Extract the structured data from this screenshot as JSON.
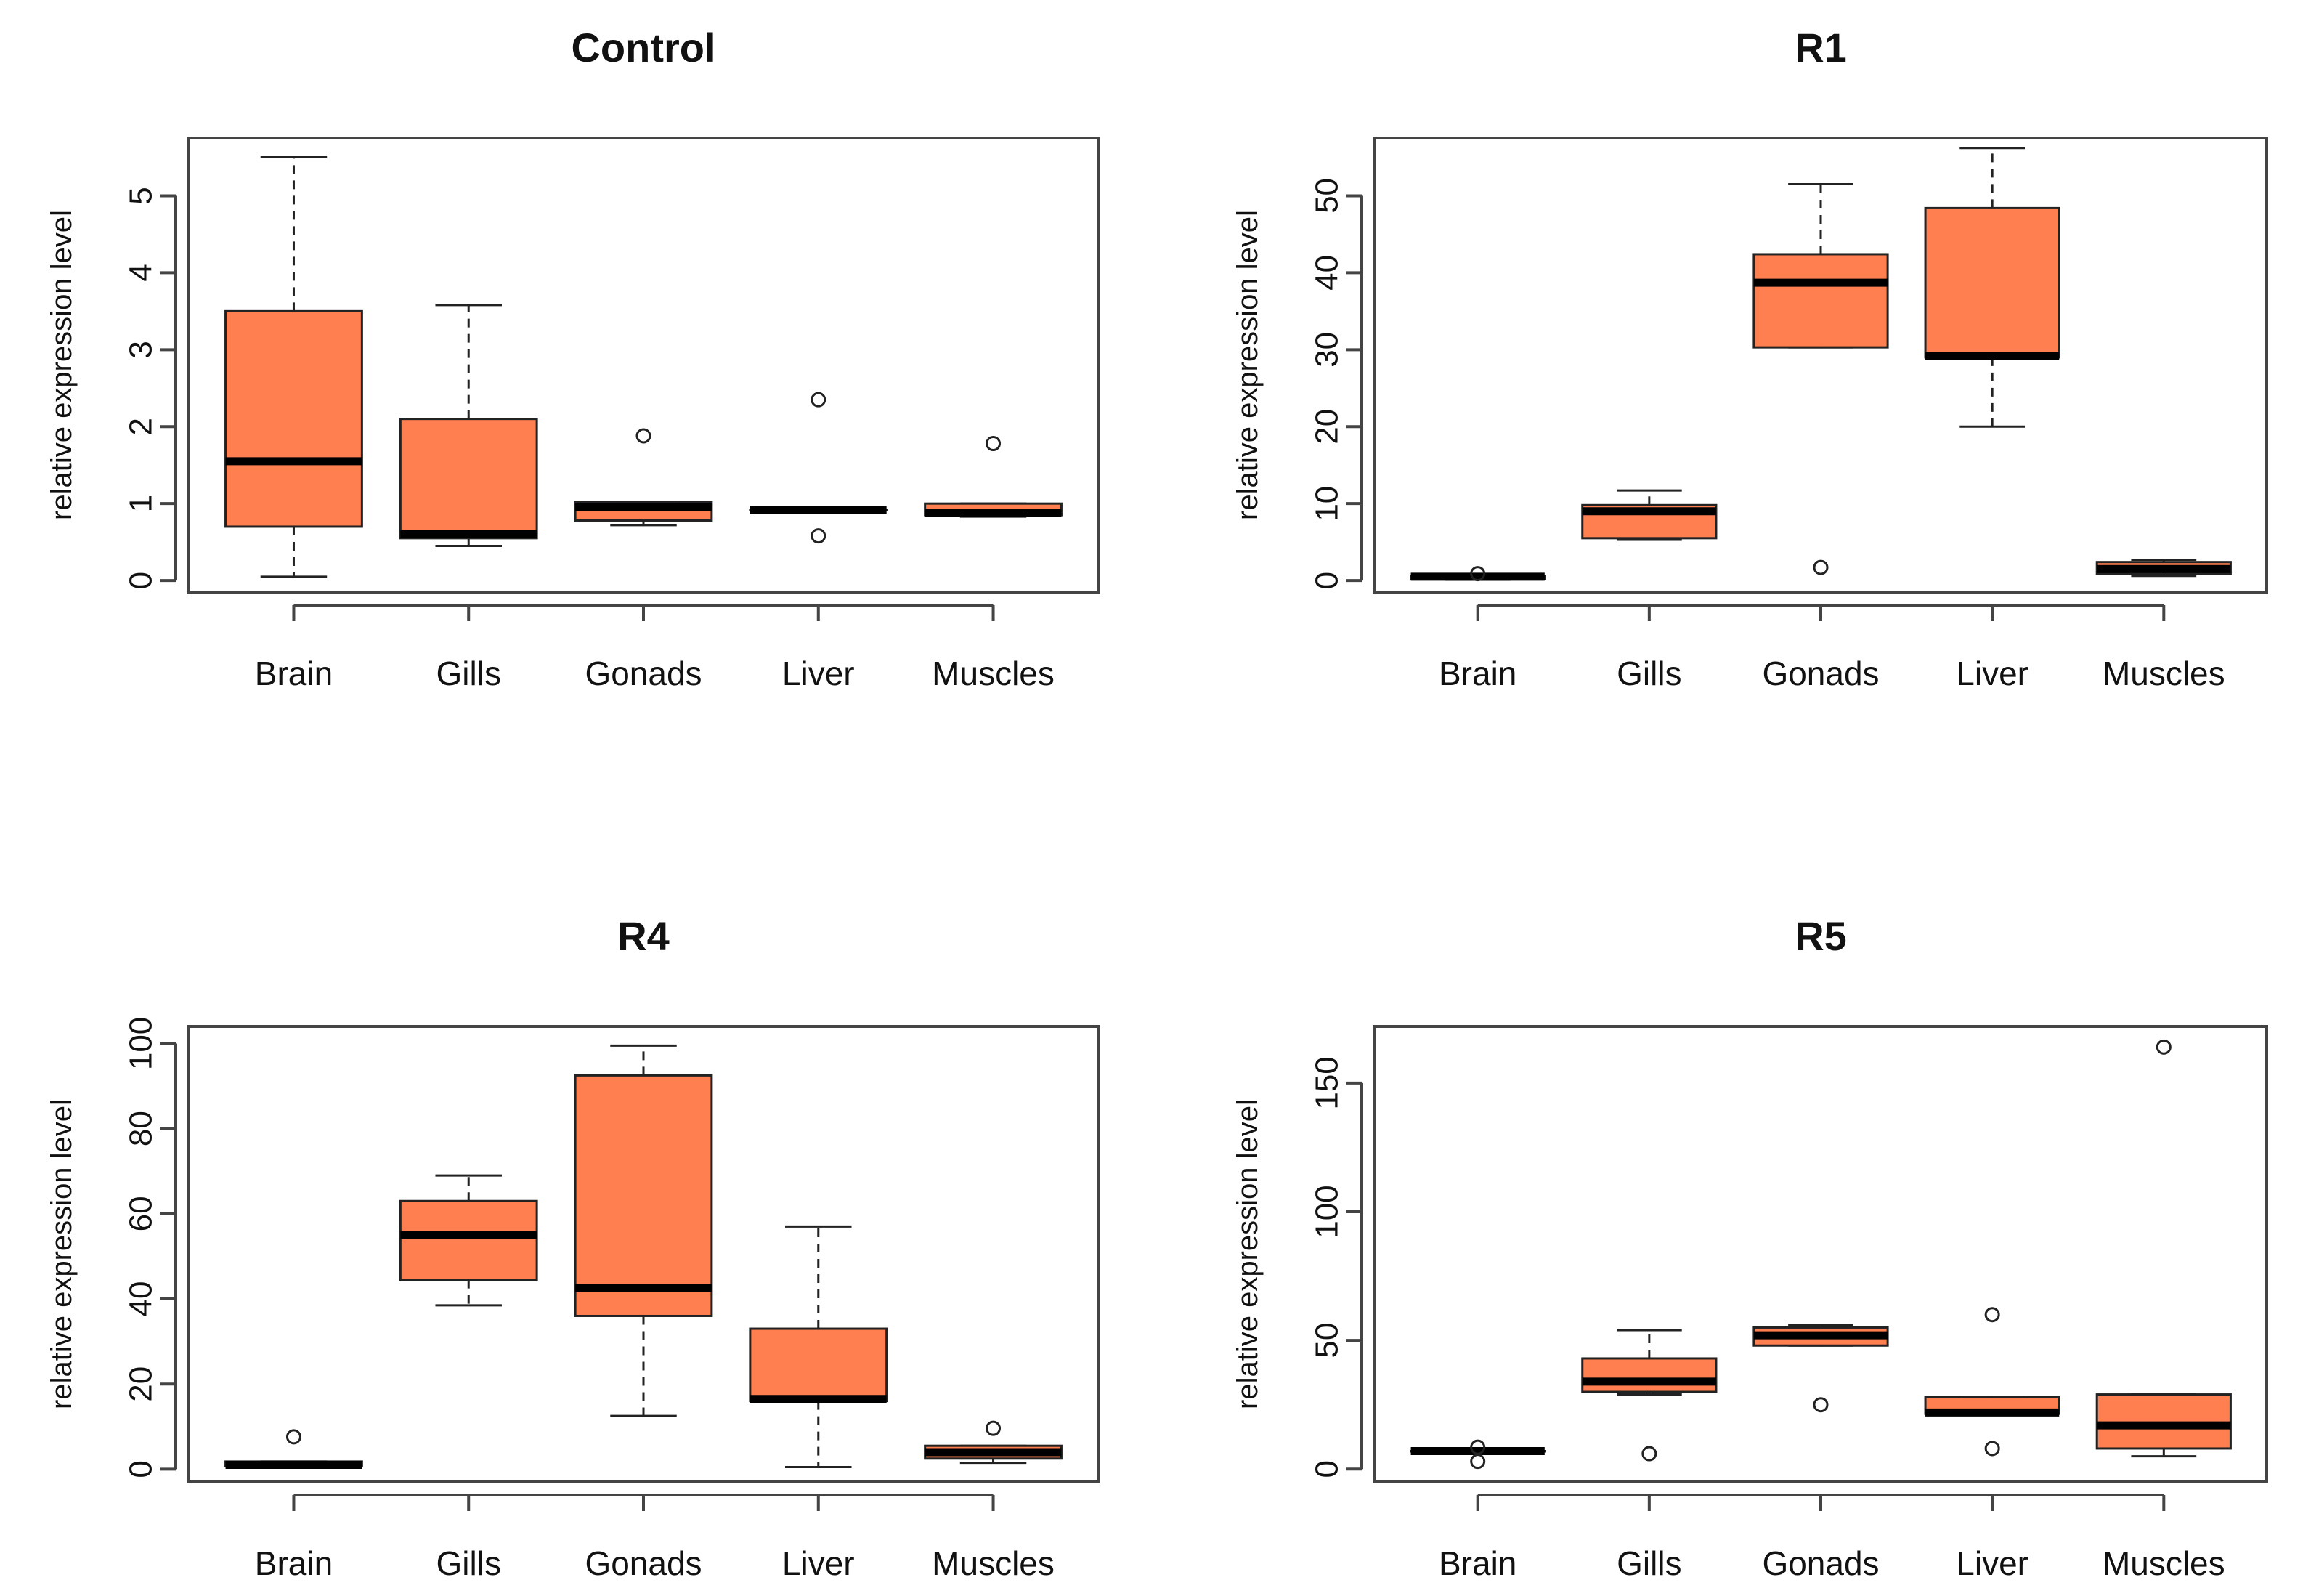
{
  "chart_data": [
    {
      "type": "box",
      "title": "Control",
      "xlabel": "",
      "ylabel": "relative expression level",
      "ylim": [
        -0.15,
        5.75
      ],
      "yticks": [
        0,
        1,
        2,
        3,
        4,
        5
      ],
      "ytick_labels": [
        "0",
        "1",
        "2",
        "3",
        "4",
        "5"
      ],
      "categories": [
        "Brain",
        "Gills",
        "Gonads",
        "Liver",
        "Muscles"
      ],
      "boxes": [
        {
          "min": 0.05,
          "q1": 0.7,
          "median": 1.55,
          "q3": 3.5,
          "max": 5.5,
          "outliers": []
        },
        {
          "min": 0.45,
          "q1": 0.55,
          "median": 0.6,
          "q3": 2.1,
          "max": 3.58,
          "outliers": []
        },
        {
          "min": 0.72,
          "q1": 0.78,
          "median": 0.95,
          "q3": 1.02,
          "max": 1.02,
          "outliers": [
            1.88
          ]
        },
        {
          "min": 0.92,
          "q1": 0.92,
          "median": 0.92,
          "q3": 0.92,
          "max": 0.92,
          "outliers": [
            2.35,
            0.58
          ]
        },
        {
          "min": 0.83,
          "q1": 0.85,
          "median": 0.88,
          "q3": 1.0,
          "max": 1.0,
          "outliers": [
            1.78
          ]
        }
      ],
      "fill_color": "#ff7f50"
    },
    {
      "type": "box",
      "title": "R1",
      "xlabel": "",
      "ylabel": "relative expression level",
      "ylim": [
        -1.5,
        57.5
      ],
      "yticks": [
        0,
        10,
        20,
        30,
        40,
        50
      ],
      "ytick_labels": [
        "0",
        "10",
        "20",
        "30",
        "40",
        "50"
      ],
      "categories": [
        "Brain",
        "Gills",
        "Gonads",
        "Liver",
        "Muscles"
      ],
      "boxes": [
        {
          "min": 0.1,
          "q1": 0.2,
          "median": 0.5,
          "q3": 0.6,
          "max": 0.6,
          "outliers": [
            0.9
          ]
        },
        {
          "min": 5.3,
          "q1": 5.5,
          "median": 9.0,
          "q3": 9.8,
          "max": 11.7,
          "outliers": []
        },
        {
          "min": 30.3,
          "q1": 30.3,
          "median": 38.7,
          "q3": 42.4,
          "max": 51.5,
          "outliers": [
            1.7
          ]
        },
        {
          "min": 20.0,
          "q1": 29.0,
          "median": 29.2,
          "q3": 48.4,
          "max": 56.2,
          "outliers": []
        },
        {
          "min": 0.6,
          "q1": 0.9,
          "median": 1.5,
          "q3": 2.4,
          "max": 2.7,
          "outliers": []
        }
      ],
      "fill_color": "#ff7f50"
    },
    {
      "type": "box",
      "title": "R4",
      "xlabel": "",
      "ylabel": "relative expression level",
      "ylim": [
        -3,
        104
      ],
      "yticks": [
        0,
        20,
        40,
        60,
        80,
        100
      ],
      "ytick_labels": [
        "0",
        "20",
        "40",
        "60",
        "80",
        "100"
      ],
      "categories": [
        "Brain",
        "Gills",
        "Gonads",
        "Liver",
        "Muscles"
      ],
      "boxes": [
        {
          "min": 0.5,
          "q1": 0.7,
          "median": 1.0,
          "q3": 1.8,
          "max": 1.8,
          "outliers": [
            7.6
          ]
        },
        {
          "min": 38.5,
          "q1": 44.5,
          "median": 55.0,
          "q3": 63.0,
          "max": 69.0,
          "outliers": []
        },
        {
          "min": 12.5,
          "q1": 36.0,
          "median": 42.5,
          "q3": 92.5,
          "max": 99.5,
          "outliers": []
        },
        {
          "min": 0.5,
          "q1": 16.0,
          "median": 16.5,
          "q3": 33.0,
          "max": 57.0,
          "outliers": []
        },
        {
          "min": 1.5,
          "q1": 2.5,
          "median": 4.0,
          "q3": 5.5,
          "max": 5.5,
          "outliers": [
            9.6
          ]
        }
      ],
      "fill_color": "#ff7f50"
    },
    {
      "type": "box",
      "title": "R5",
      "xlabel": "",
      "ylabel": "relative expression level",
      "ylim": [
        -5,
        172
      ],
      "yticks": [
        0,
        50,
        100,
        150
      ],
      "ytick_labels": [
        "0",
        "50",
        "100",
        "150"
      ],
      "categories": [
        "Brain",
        "Gills",
        "Gonads",
        "Liver",
        "Muscles"
      ],
      "boxes": [
        {
          "min": 7.0,
          "q1": 7.0,
          "median": 7.0,
          "q3": 7.0,
          "max": 7.0,
          "outliers": [
            8.5,
            3.0
          ]
        },
        {
          "min": 29.0,
          "q1": 30.0,
          "median": 34.0,
          "q3": 43.0,
          "max": 54.0,
          "outliers": [
            6.0
          ]
        },
        {
          "min": 48.0,
          "q1": 48.0,
          "median": 52.0,
          "q3": 55.0,
          "max": 56.0,
          "outliers": [
            25.0
          ]
        },
        {
          "min": 21.0,
          "q1": 21.5,
          "median": 22.0,
          "q3": 28.0,
          "max": 28.0,
          "outliers": [
            60.0,
            8.0
          ]
        },
        {
          "min": 5.0,
          "q1": 8.0,
          "median": 17.0,
          "q3": 29.0,
          "max": 29.0,
          "outliers": [
            164.0
          ]
        }
      ],
      "fill_color": "#ff7f50"
    }
  ]
}
